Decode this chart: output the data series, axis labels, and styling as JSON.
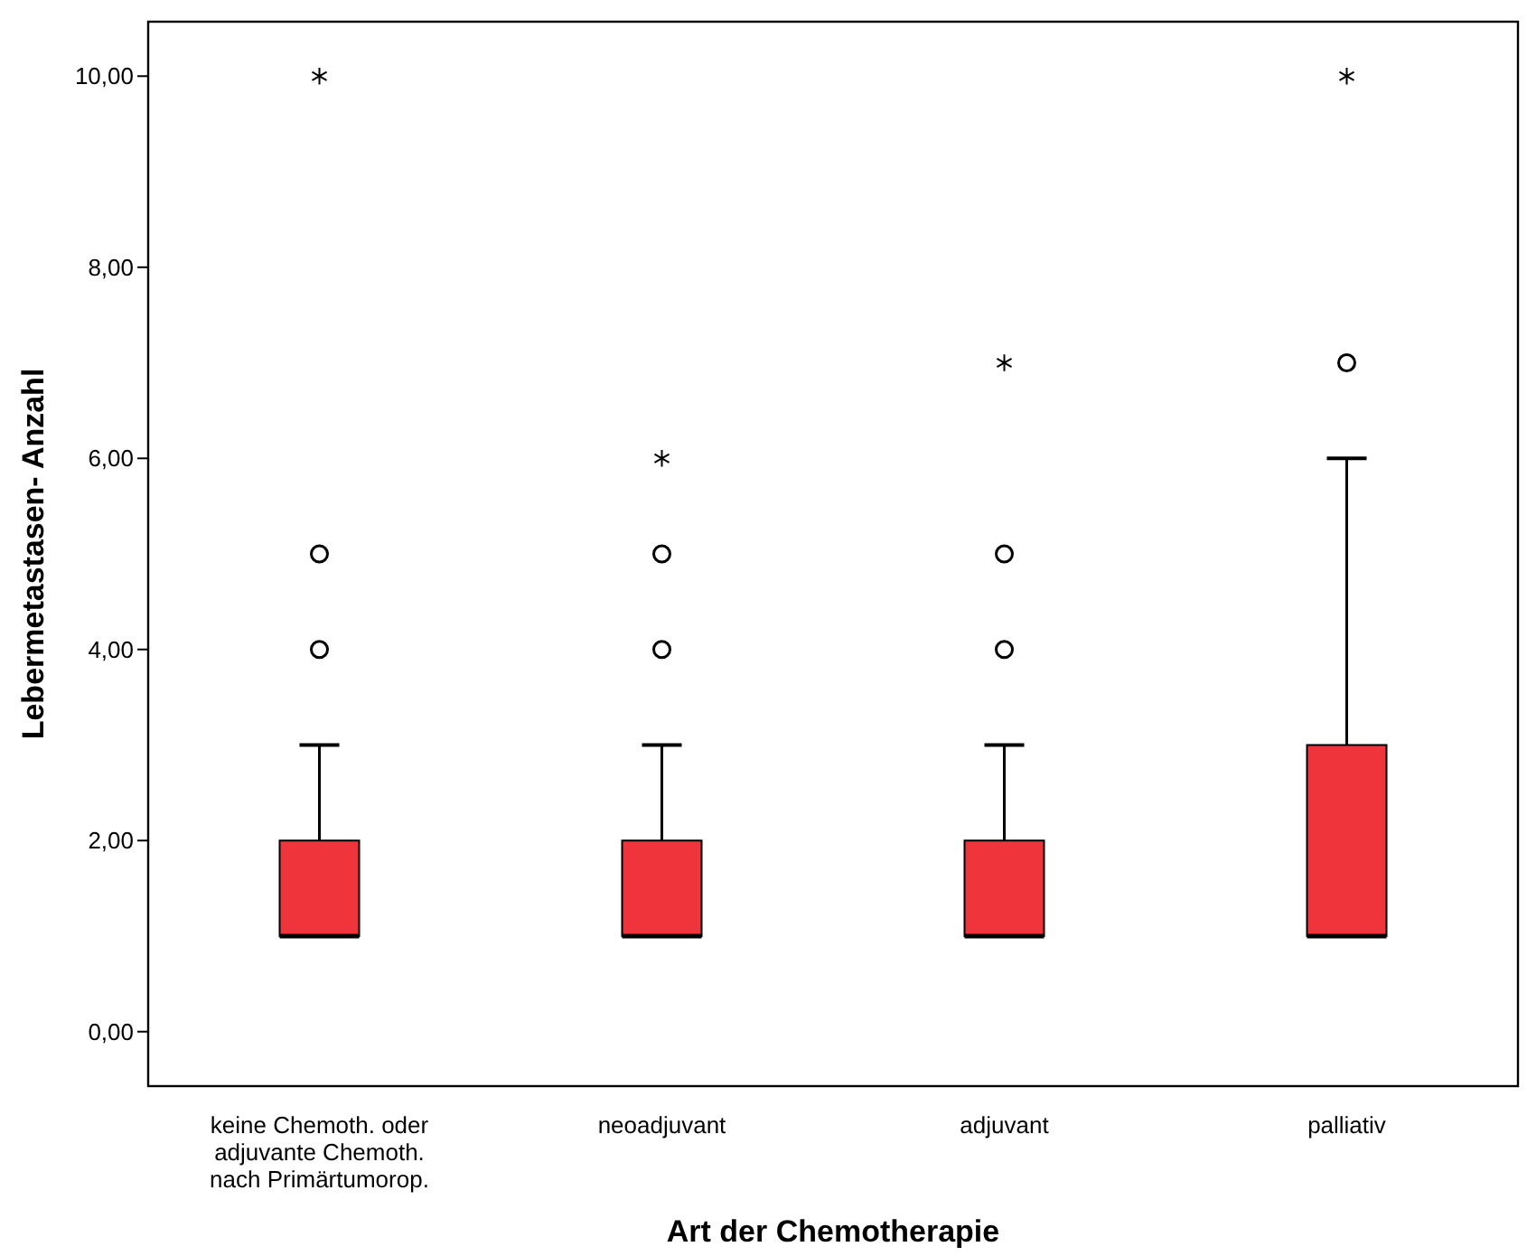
{
  "chart_data": {
    "type": "box",
    "xlabel": "Art der Chemotherapie",
    "ylabel": "Lebermetastasen- Anzahl",
    "categories": [
      "keine Chemoth. oder\nadjuvante Chemoth.\nnach Primärtumorop.",
      "neoadjuvant",
      "adjuvant",
      "palliativ"
    ],
    "series": [
      {
        "color": "#f0343c",
        "boxes": [
          {
            "low": 1,
            "q1": 1,
            "median": 1,
            "q3": 2,
            "high": 3,
            "outliers": [
              4,
              5
            ]
          },
          {
            "low": 1,
            "q1": 1,
            "median": 1,
            "q3": 2,
            "high": 3,
            "outliers": [
              4,
              5
            ]
          },
          {
            "low": 1,
            "q1": 1,
            "median": 1,
            "q3": 2,
            "high": 3,
            "outliers": [
              4,
              5
            ]
          },
          {
            "low": 1,
            "q1": 1,
            "median": 1,
            "q3": 3,
            "high": 6,
            "outliers": [
              7
            ]
          }
        ]
      },
      {
        "type": "scatter",
        "marker": "cross",
        "color": "#000000",
        "values": [
          10,
          6,
          7,
          10
        ]
      }
    ],
    "ylim": [
      -0.57,
      10.57
    ],
    "yticks": [
      {
        "value": 0,
        "label": "0,00"
      },
      {
        "value": 2,
        "label": "2,00"
      },
      {
        "value": 4,
        "label": "4,00"
      },
      {
        "value": 6,
        "label": "6,00"
      },
      {
        "value": 8,
        "label": "8,00"
      },
      {
        "value": 10,
        "label": "10,00"
      }
    ],
    "grid": false
  }
}
